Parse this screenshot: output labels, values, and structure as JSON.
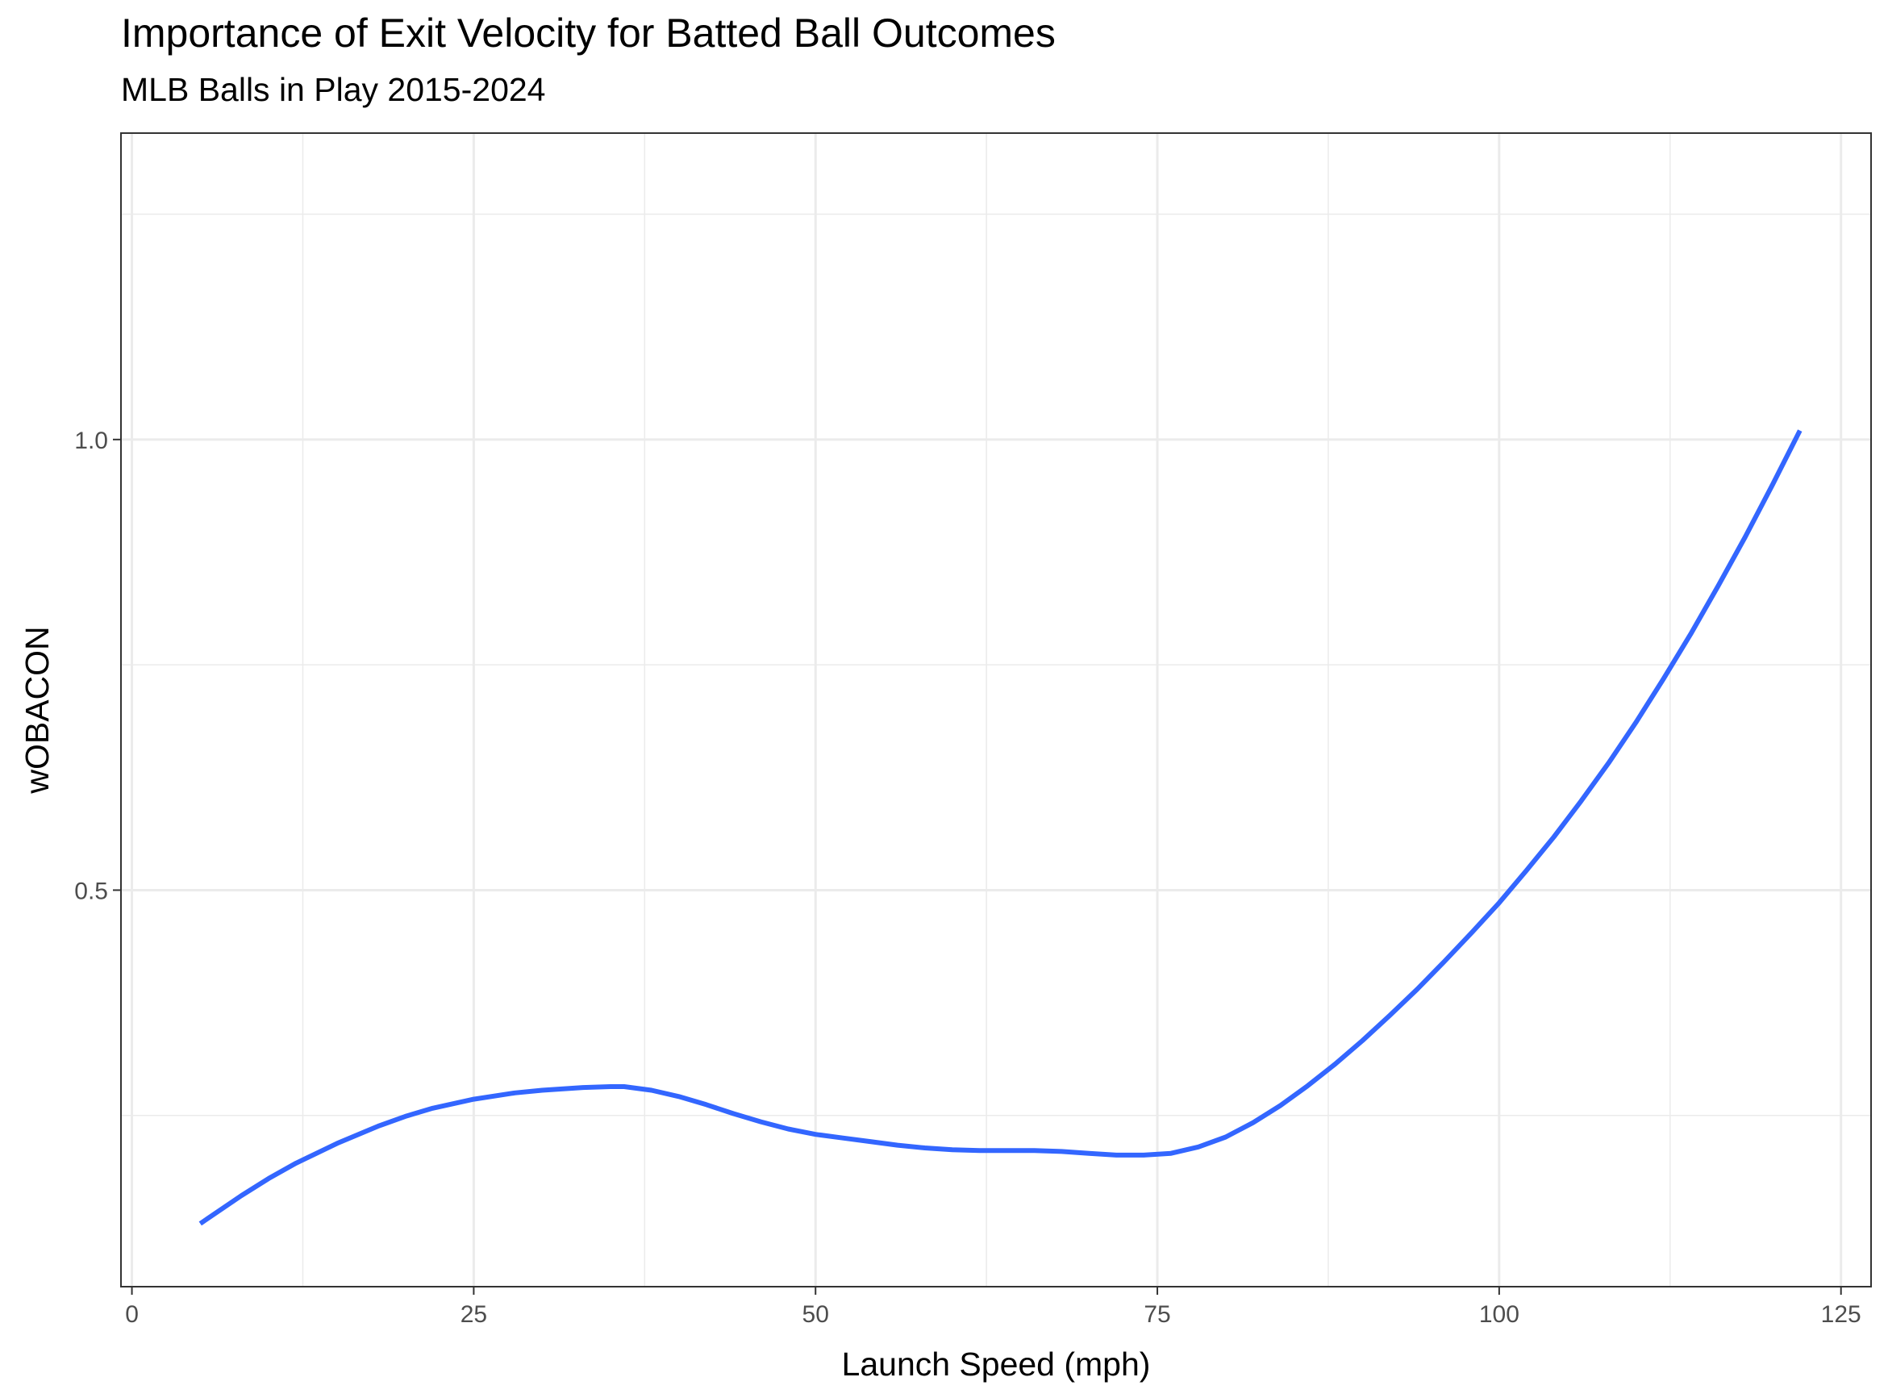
{
  "title": "Importance of Exit Velocity for Batted Ball Outcomes",
  "subtitle": "MLB Balls in Play 2015-2024",
  "chart_data": {
    "type": "line",
    "title": "Importance of Exit Velocity for Batted Ball Outcomes",
    "subtitle": "MLB Balls in Play 2015-2024",
    "xlabel": "Launch Speed (mph)",
    "ylabel": "wOBACON",
    "xlim": [
      -0.8,
      127.2
    ],
    "ylim": [
      0.06,
      1.34
    ],
    "x_ticks": [
      0,
      25,
      50,
      75,
      100,
      125
    ],
    "x_tick_labels": [
      "0",
      "25",
      "50",
      "75",
      "100",
      "125"
    ],
    "y_ticks": [
      0.5,
      1.0
    ],
    "y_tick_labels": [
      "0.5",
      "1.0"
    ],
    "grid": true,
    "legend": "none",
    "series_color": "#3366FF",
    "series": [
      {
        "x": [
          5,
          8,
          10,
          12,
          15,
          18,
          20,
          22,
          25,
          28,
          30,
          33,
          35,
          36,
          38,
          40,
          42,
          44,
          46,
          48,
          50,
          52,
          54,
          56,
          58,
          60,
          62,
          64,
          66,
          68,
          70,
          72,
          74,
          76,
          78,
          80,
          82,
          84,
          86,
          88,
          90,
          92,
          94,
          96,
          98,
          100,
          102,
          104,
          106,
          108,
          110,
          112,
          114,
          116,
          118,
          120,
          122
        ],
        "y": [
          0.13,
          0.161,
          0.18,
          0.197,
          0.219,
          0.238,
          0.249,
          0.258,
          0.268,
          0.275,
          0.278,
          0.281,
          0.282,
          0.282,
          0.278,
          0.271,
          0.262,
          0.252,
          0.243,
          0.235,
          0.229,
          0.225,
          0.221,
          0.217,
          0.214,
          0.212,
          0.211,
          0.211,
          0.211,
          0.21,
          0.208,
          0.206,
          0.206,
          0.208,
          0.215,
          0.226,
          0.242,
          0.261,
          0.283,
          0.307,
          0.333,
          0.361,
          0.39,
          0.421,
          0.453,
          0.486,
          0.522,
          0.559,
          0.599,
          0.641,
          0.686,
          0.734,
          0.784,
          0.837,
          0.892,
          0.95,
          1.01
        ]
      }
    ]
  }
}
